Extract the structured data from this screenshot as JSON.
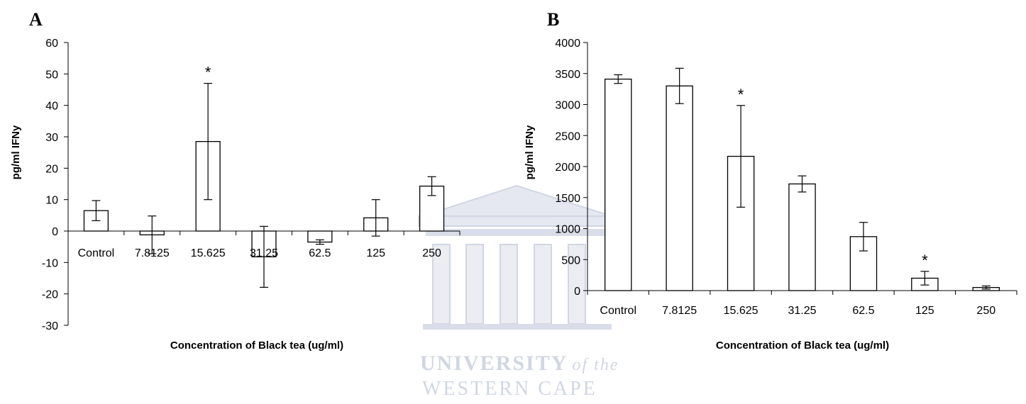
{
  "watermark": {
    "line1": "UNIVERSITY",
    "line1_italic": "of the",
    "line2": "WESTERN CAPE",
    "color": "#c9cfe0"
  },
  "chart_data": [
    {
      "type": "bar",
      "panel_label": "A",
      "xlabel": "Concentration of Black tea (ug/ml)",
      "ylabel": "pg/ml IFNy",
      "ylim": [
        -30,
        60
      ],
      "yticks": [
        -30,
        -20,
        -10,
        0,
        10,
        20,
        30,
        40,
        50,
        60
      ],
      "categories": [
        "Control",
        "7.8125",
        "15.625",
        "31.25",
        "62.5",
        "125",
        "250"
      ],
      "values": [
        6.5,
        -1.2,
        28.5,
        -8.2,
        -3.5,
        4.2,
        14.3
      ],
      "errors": [
        3.2,
        6.0,
        18.5,
        9.7,
        0.7,
        5.8,
        3.0
      ],
      "significant": [
        false,
        false,
        true,
        false,
        false,
        false,
        false
      ],
      "significance_marker": "*",
      "bar_fill": "#ffffff",
      "bar_stroke": "#000000",
      "legend": "none",
      "grid": false
    },
    {
      "type": "bar",
      "panel_label": "B",
      "xlabel": "Concentration of Black tea (ug/ml)",
      "ylabel": "pg/ml IFNy",
      "ylim": [
        0,
        4000
      ],
      "yticks": [
        0,
        500,
        1000,
        1500,
        2000,
        2500,
        3000,
        3500,
        4000
      ],
      "categories": [
        "Control",
        "7.8125",
        "15.625",
        "31.25",
        "62.5",
        "125",
        "250"
      ],
      "values": [
        3410,
        3300,
        2165,
        1720,
        870,
        200,
        50
      ],
      "errors": [
        70,
        285,
        820,
        130,
        230,
        110,
        25
      ],
      "significant": [
        false,
        false,
        true,
        false,
        false,
        true,
        false
      ],
      "significance_marker": "*",
      "bar_fill": "#ffffff",
      "bar_stroke": "#000000",
      "legend": "none",
      "grid": false
    }
  ]
}
